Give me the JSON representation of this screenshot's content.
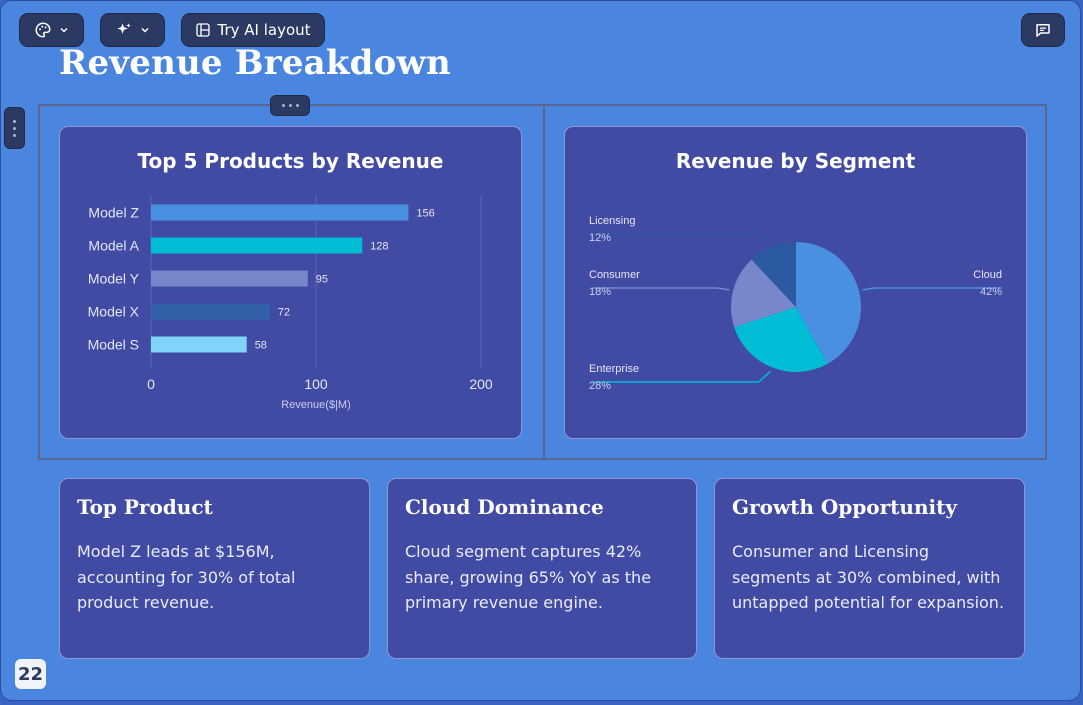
{
  "toolbar": {
    "theme_icon": "palette-icon",
    "ai_icon": "sparkle-icon",
    "try_ai_layout_label": "Try AI layout",
    "comment_icon": "comment-icon"
  },
  "slide": {
    "title": "Revenue Breakdown",
    "page_number": "22"
  },
  "bar_card": {
    "title": "Top 5 Products by Revenue"
  },
  "pie_card": {
    "title": "Revenue by Segment"
  },
  "chart_data": [
    {
      "type": "bar",
      "orientation": "horizontal",
      "title": "Top 5 Products by Revenue",
      "categories": [
        "Model Z",
        "Model A",
        "Model Y",
        "Model X",
        "Model S"
      ],
      "values": [
        156,
        128,
        95,
        72,
        58
      ],
      "colors": [
        "#4a90e2",
        "#00bcd4",
        "#7986cb",
        "#3261a8",
        "#81d4fa"
      ],
      "xlabel": "Revenue($|M)",
      "xlim": [
        0,
        200
      ],
      "xticks": [
        0,
        100,
        200
      ],
      "grid": true
    },
    {
      "type": "pie",
      "title": "Revenue by Segment",
      "slices": [
        {
          "label": "Cloud",
          "value": 42,
          "value_label": "42%",
          "color": "#4a90e2"
        },
        {
          "label": "Enterprise",
          "value": 28,
          "value_label": "28%",
          "color": "#00bcd4"
        },
        {
          "label": "Consumer",
          "value": 18,
          "value_label": "18%",
          "color": "#7986cb"
        },
        {
          "label": "Licensing",
          "value": 12,
          "value_label": "12%",
          "color": "#2b5aa0"
        }
      ]
    }
  ],
  "insights": [
    {
      "title": "Top Product",
      "body": "Model Z leads at $156M, accounting for 30% of total product revenue."
    },
    {
      "title": "Cloud Dominance",
      "body": "Cloud segment captures 42% share, growing 65% YoY as the primary revenue engine."
    },
    {
      "title": "Growth Opportunity",
      "body": "Consumer and Licensing segments at 30% combined, with untapped potential for expansion."
    }
  ]
}
